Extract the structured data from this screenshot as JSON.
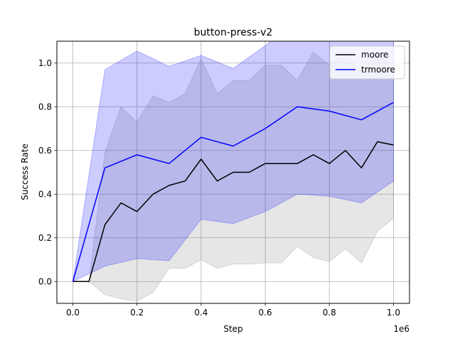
{
  "chart_data": {
    "type": "line",
    "title": "button-press-v2",
    "xlabel": "Step",
    "ylabel": "Success Rate",
    "x_offset_label": "1e6",
    "xlim": [
      -0.05,
      1.05
    ],
    "ylim": [
      -0.1,
      1.1
    ],
    "x_ticks": [
      0.0,
      0.2,
      0.4,
      0.6,
      0.8,
      1.0
    ],
    "x_tick_labels": [
      "0.0",
      "0.2",
      "0.4",
      "0.6",
      "0.8",
      "1.0"
    ],
    "y_ticks": [
      0.0,
      0.2,
      0.4,
      0.6,
      0.8,
      1.0
    ],
    "y_tick_labels": [
      "0.0",
      "0.2",
      "0.4",
      "0.6",
      "0.8",
      "1.0"
    ],
    "grid": true,
    "legend_position": "top-right",
    "x": [
      0.0,
      0.05,
      0.1,
      0.15,
      0.2,
      0.25,
      0.3,
      0.35,
      0.4,
      0.45,
      0.5,
      0.55,
      0.6,
      0.65,
      0.7,
      0.75,
      0.8,
      0.85,
      0.9,
      0.95,
      1.0
    ],
    "series": [
      {
        "name": "moore",
        "color": "#000000",
        "band_color": "#808080",
        "values": [
          0.0,
          0.0,
          0.26,
          0.36,
          0.32,
          0.4,
          0.44,
          0.46,
          0.56,
          0.46,
          0.5,
          0.5,
          0.54,
          0.54,
          0.54,
          0.58,
          0.54,
          0.6,
          0.52,
          0.64,
          0.625
        ],
        "upper": [
          0.0,
          0.0,
          0.59,
          0.8,
          0.73,
          0.85,
          0.82,
          0.86,
          1.02,
          0.86,
          0.92,
          0.92,
          0.99,
          0.99,
          0.92,
          1.05,
          0.99,
          1.05,
          0.96,
          1.05,
          0.96
        ],
        "lower": [
          0.0,
          0.0,
          -0.06,
          -0.08,
          -0.09,
          -0.05,
          0.06,
          0.06,
          0.1,
          0.06,
          0.08,
          0.08,
          0.085,
          0.085,
          0.16,
          0.11,
          0.09,
          0.15,
          0.085,
          0.23,
          0.29
        ]
      },
      {
        "name": "trmoore",
        "color": "#0000ff",
        "band_color": "#0000ff",
        "x": [
          0.0,
          0.1,
          0.2,
          0.3,
          0.4,
          0.5,
          0.6,
          0.7,
          0.8,
          0.9,
          1.0
        ],
        "values": [
          0.0,
          0.52,
          0.58,
          0.54,
          0.66,
          0.62,
          0.7,
          0.8,
          0.78,
          0.74,
          0.82
        ],
        "upper": [
          0.0,
          0.97,
          1.055,
          0.985,
          1.035,
          0.975,
          1.08,
          1.2,
          1.17,
          1.12,
          1.18
        ],
        "lower": [
          0.0,
          0.07,
          0.105,
          0.095,
          0.285,
          0.265,
          0.32,
          0.4,
          0.39,
          0.36,
          0.46
        ]
      }
    ]
  }
}
